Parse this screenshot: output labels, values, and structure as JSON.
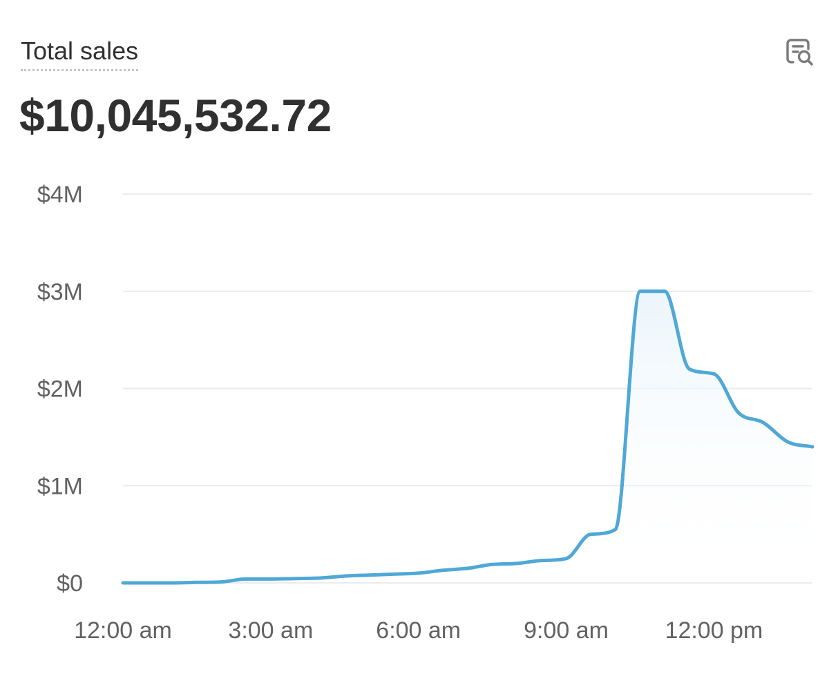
{
  "card": {
    "title": "Total sales",
    "value": "$10,045,532.72",
    "explore_icon": "report-search-icon"
  },
  "colors": {
    "line": "#4fa8d6",
    "fill": "#e9f4fb",
    "grid": "#ebebeb",
    "text": "#303030",
    "muted": "#616161"
  },
  "chart_data": {
    "type": "area",
    "title": "Total sales",
    "xlabel": "",
    "ylabel": "",
    "grid": true,
    "ylim": [
      0,
      4000000
    ],
    "yticks": [
      {
        "value": 0,
        "label": "$0"
      },
      {
        "value": 1000000,
        "label": "$1M"
      },
      {
        "value": 2000000,
        "label": "$2M"
      },
      {
        "value": 3000000,
        "label": "$3M"
      },
      {
        "value": 4000000,
        "label": "$4M"
      }
    ],
    "xticks": [
      {
        "hour": 0,
        "label": "12:00 am"
      },
      {
        "hour": 3,
        "label": "3:00 am"
      },
      {
        "hour": 6,
        "label": "6:00 am"
      },
      {
        "hour": 9,
        "label": "9:00 am"
      },
      {
        "hour": 12,
        "label": "12:00 pm"
      }
    ],
    "xlim": [
      0,
      14
    ],
    "series": [
      {
        "x": [
          0,
          0.5,
          1,
          1.5,
          2,
          2.5,
          3,
          3.5,
          4,
          4.5,
          5,
          5.5,
          6,
          6.5,
          7,
          7.5,
          8,
          8.5,
          9,
          9.5,
          10,
          10.5,
          11,
          11.5,
          12,
          12.5,
          13,
          13.5,
          14
        ],
        "values": [
          0,
          0,
          0,
          5000,
          10000,
          40000,
          40000,
          45000,
          50000,
          70000,
          80000,
          90000,
          100000,
          130000,
          150000,
          190000,
          200000,
          230000,
          250000,
          500000,
          550000,
          3000000,
          3000000,
          2200000,
          2150000,
          1750000,
          1650000,
          1450000,
          1400000
        ]
      }
    ]
  }
}
